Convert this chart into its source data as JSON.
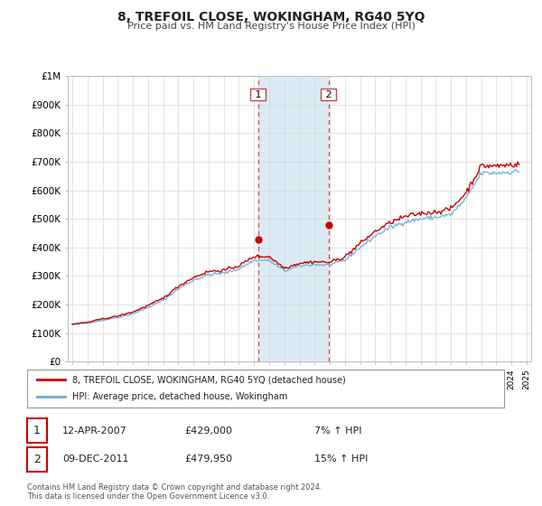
{
  "title": "8, TREFOIL CLOSE, WOKINGHAM, RG40 5YQ",
  "subtitle": "Price paid vs. HM Land Registry's House Price Index (HPI)",
  "background_color": "#ffffff",
  "plot_bg_color": "#ffffff",
  "grid_color": "#d8d8d8",
  "ylim": [
    0,
    1000000
  ],
  "yticks": [
    0,
    100000,
    200000,
    300000,
    400000,
    500000,
    600000,
    700000,
    800000,
    900000,
    1000000
  ],
  "ytick_labels": [
    "£0",
    "£100K",
    "£200K",
    "£300K",
    "£400K",
    "£500K",
    "£600K",
    "£700K",
    "£800K",
    "£900K",
    "£1M"
  ],
  "hpi_color": "#6baed6",
  "price_color": "#cc0000",
  "sale1_date": "12-APR-2007",
  "sale1_price": 429000,
  "sale1_pct": "7%",
  "sale2_date": "09-DEC-2011",
  "sale2_price": 479950,
  "sale2_pct": "15%",
  "legend_line1": "8, TREFOIL CLOSE, WOKINGHAM, RG40 5YQ (detached house)",
  "legend_line2": "HPI: Average price, detached house, Wokingham",
  "footer1": "Contains HM Land Registry data © Crown copyright and database right 2024.",
  "footer2": "This data is licensed under the Open Government Licence v3.0.",
  "highlight_start": 2007.27,
  "highlight_end": 2011.92,
  "xlim_left": 1994.7,
  "xlim_right": 2025.3
}
